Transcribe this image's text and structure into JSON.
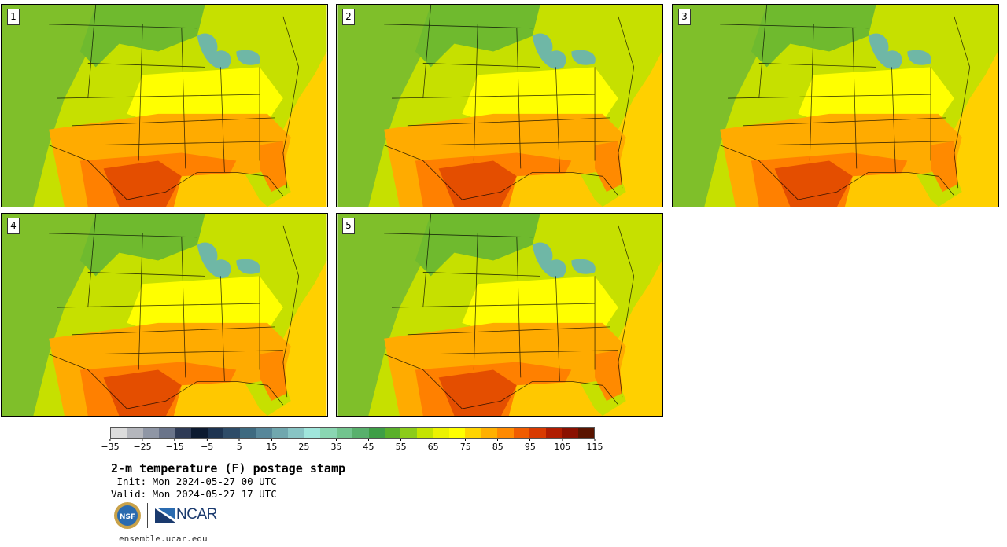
{
  "panels": [
    {
      "label": "1"
    },
    {
      "label": "2"
    },
    {
      "label": "3"
    },
    {
      "label": "4"
    },
    {
      "label": "5"
    }
  ],
  "colorbar": {
    "colors": [
      "#dcdcdc",
      "#b4b6bc",
      "#8f96a5",
      "#6a748a",
      "#2e3a55",
      "#0c1a30",
      "#1d3350",
      "#2e4c68",
      "#3e6a80",
      "#57879a",
      "#70a7ae",
      "#88c4c4",
      "#a0e6dc",
      "#8ad6b2",
      "#72c48e",
      "#58b06c",
      "#3e9e46",
      "#5ab02a",
      "#8ccc1a",
      "#c4e400",
      "#ecf200",
      "#ffff00",
      "#ffd400",
      "#ffb000",
      "#ff8a00",
      "#f05c00",
      "#d83a00",
      "#b01c00",
      "#8a1000",
      "#5a1400"
    ],
    "ticks": [
      "−35",
      "−25",
      "−15",
      "−5",
      "5",
      "15",
      "25",
      "35",
      "45",
      "55",
      "65",
      "75",
      "85",
      "95",
      "105",
      "115"
    ]
  },
  "title": "2-m temperature (F) postage stamp",
  "init_line": " Init: Mon 2024-05-27 00 UTC",
  "valid_line": "Valid: Mon 2024-05-27 17 UTC",
  "logos": {
    "nsf": "NSF",
    "ncar": "NCAR"
  },
  "site": "ensemble.ucar.edu",
  "map_colors": {
    "ocean_pacific": "#4f9e3f",
    "ocean_atlantic": "#ffd000",
    "gulf": "#ffc800",
    "land_cool": "#7fbf2a",
    "land_mild": "#c6e000",
    "land_warm": "#ffff00",
    "land_hot": "#ffab00",
    "land_hotter": "#ff8000",
    "land_hottest": "#e44e00",
    "lakes": "#6fb7a6"
  }
}
